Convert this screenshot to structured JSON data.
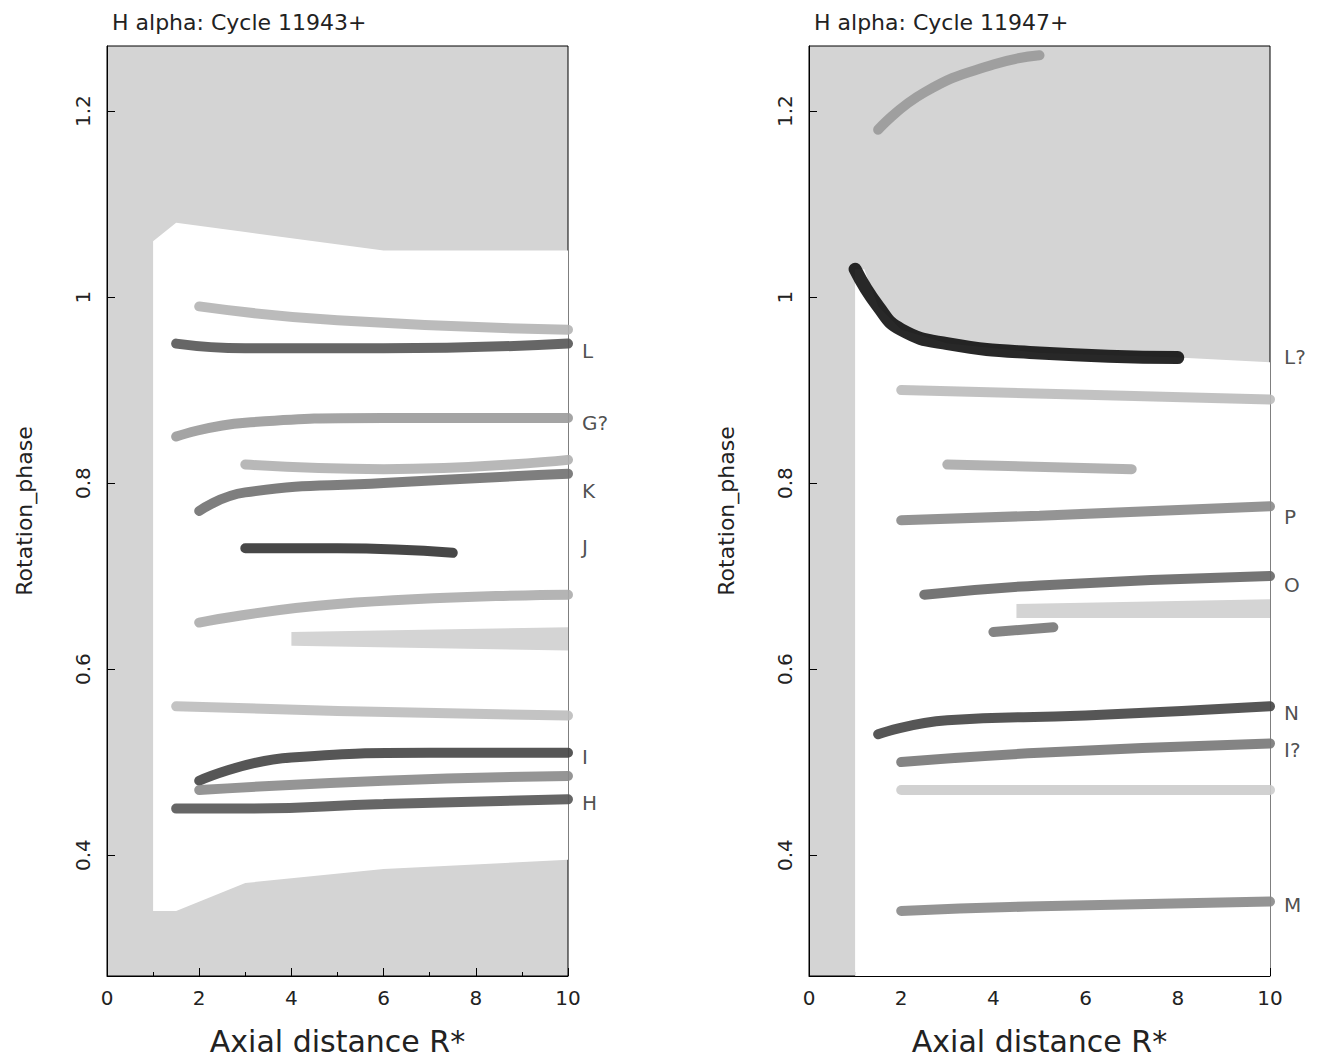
{
  "chart_data": [
    {
      "type": "line",
      "title": "H alpha: Cycle 11943+",
      "x_label": "Axial distance R*",
      "y_label": "Rotation_phase",
      "xlim": [
        0,
        10
      ],
      "xticks": [
        0,
        2,
        4,
        6,
        8,
        10
      ],
      "ylim": [
        0.27,
        1.27
      ],
      "yticks": [
        0.4,
        0.6,
        0.8,
        1.2,
        1
      ],
      "color": "#d4d4d4",
      "regions": [
        {
          "color": "#ffffff",
          "points": [
            [
              1,
              0.34
            ],
            [
              1.5,
              0.34
            ],
            [
              3,
              0.37
            ],
            [
              6,
              0.385
            ],
            [
              10,
              0.395
            ],
            [
              10,
              1.05
            ],
            [
              6,
              1.05
            ],
            [
              3,
              1.07
            ],
            [
              1.5,
              1.08
            ],
            [
              1,
              1.06
            ]
          ]
        },
        {
          "color": "#d4d4d4",
          "points": [
            [
              4,
              0.625
            ],
            [
              10,
              0.62
            ],
            [
              10,
              0.645
            ],
            [
              4,
              0.64
            ]
          ]
        }
      ],
      "series": [
        {
          "color": "#b4b4b4",
          "values": [
            [
              2,
              0.99
            ],
            [
              5,
              0.975
            ],
            [
              10,
              0.965
            ]
          ]
        },
        {
          "color": "#555555",
          "values": [
            [
              1.5,
              0.95
            ],
            [
              3,
              0.945
            ],
            [
              6,
              0.945
            ],
            [
              10,
              0.95
            ]
          ]
        },
        {
          "color": "#9a9a9a",
          "values": [
            [
              1.5,
              0.85
            ],
            [
              3,
              0.865
            ],
            [
              6,
              0.87
            ],
            [
              10,
              0.87
            ]
          ]
        },
        {
          "color": "#b0b0b0",
          "values": [
            [
              3,
              0.82
            ],
            [
              6,
              0.815
            ],
            [
              10,
              0.825
            ]
          ]
        },
        {
          "color": "#707070",
          "values": [
            [
              2,
              0.77
            ],
            [
              3,
              0.79
            ],
            [
              6,
              0.8
            ],
            [
              10,
              0.81
            ]
          ]
        },
        {
          "color": "#333333",
          "values": [
            [
              3,
              0.73
            ],
            [
              5,
              0.73
            ],
            [
              7.5,
              0.725
            ]
          ]
        },
        {
          "color": "#acacac",
          "values": [
            [
              2,
              0.65
            ],
            [
              5,
              0.67
            ],
            [
              10,
              0.68
            ]
          ]
        },
        {
          "color": "#bdbdbd",
          "values": [
            [
              1.5,
              0.56
            ],
            [
              5,
              0.555
            ],
            [
              10,
              0.55
            ]
          ]
        },
        {
          "color": "#444444",
          "values": [
            [
              2,
              0.48
            ],
            [
              4,
              0.505
            ],
            [
              7,
              0.51
            ],
            [
              10,
              0.51
            ]
          ]
        },
        {
          "color": "#8a8a8a",
          "values": [
            [
              2,
              0.47
            ],
            [
              6,
              0.48
            ],
            [
              10,
              0.485
            ]
          ]
        },
        {
          "color": "#555555",
          "values": [
            [
              1.5,
              0.45
            ],
            [
              3,
              0.45
            ],
            [
              6,
              0.455
            ],
            [
              10,
              0.46
            ]
          ]
        }
      ],
      "annotations": [
        {
          "text": "L",
          "y": 0.942
        },
        {
          "text": "G?",
          "y": 0.865
        },
        {
          "text": "K",
          "y": 0.791
        },
        {
          "text": "J",
          "y": 0.731
        },
        {
          "text": "I",
          "y": 0.506
        },
        {
          "text": "H",
          "y": 0.456
        }
      ]
    },
    {
      "type": "line",
      "title": "H alpha: Cycle 11947+",
      "x_label": "Axial distance R*",
      "y_label": "Rotation_phase",
      "xlim": [
        0,
        10
      ],
      "xticks": [
        0,
        2,
        4,
        6,
        8,
        10
      ],
      "ylim": [
        0.27,
        1.27
      ],
      "yticks": [
        0.4,
        0.6,
        0.8,
        1.2,
        1
      ],
      "color": "#d4d4d4",
      "regions": [
        {
          "color": "#ffffff",
          "points": [
            [
              1,
              0.27
            ],
            [
              10,
              0.27
            ],
            [
              10,
              0.93
            ],
            [
              8,
              0.935
            ],
            [
              5,
              0.94
            ],
            [
              3,
              0.95
            ],
            [
              2,
              0.965
            ],
            [
              1.5,
              0.99
            ],
            [
              1.2,
              1.03
            ],
            [
              1,
              1.03
            ]
          ]
        },
        {
          "color": "#d4d4d4",
          "points": [
            [
              4.5,
              0.655
            ],
            [
              10,
              0.655
            ],
            [
              10,
              0.675
            ],
            [
              4.5,
              0.67
            ]
          ]
        }
      ],
      "series": [
        {
          "color": "#999999",
          "values": [
            [
              1.5,
              1.18
            ],
            [
              2.5,
              1.22
            ],
            [
              4,
              1.25
            ],
            [
              5,
              1.26
            ]
          ]
        },
        {
          "color": "#111111",
          "values": [
            [
              1,
              1.03
            ],
            [
              1.5,
              0.99
            ],
            [
              2,
              0.965
            ],
            [
              3,
              0.95
            ],
            [
              5,
              0.94
            ],
            [
              8,
              0.935
            ]
          ]
        },
        {
          "color": "#bbbbbb",
          "values": [
            [
              2,
              0.9
            ],
            [
              6,
              0.895
            ],
            [
              10,
              0.89
            ]
          ]
        },
        {
          "color": "#aaaaaa",
          "values": [
            [
              3,
              0.82
            ],
            [
              7,
              0.815
            ]
          ]
        },
        {
          "color": "#888888",
          "values": [
            [
              2,
              0.76
            ],
            [
              5,
              0.765
            ],
            [
              10,
              0.775
            ]
          ]
        },
        {
          "color": "#666666",
          "values": [
            [
              2.5,
              0.68
            ],
            [
              5,
              0.69
            ],
            [
              10,
              0.7
            ]
          ]
        },
        {
          "color": "#777777",
          "values": [
            [
              4,
              0.64
            ],
            [
              5.3,
              0.645
            ]
          ]
        },
        {
          "color": "#444444",
          "values": [
            [
              1.5,
              0.53
            ],
            [
              3,
              0.545
            ],
            [
              6,
              0.55
            ],
            [
              10,
              0.56
            ]
          ]
        },
        {
          "color": "#777777",
          "values": [
            [
              2,
              0.5
            ],
            [
              5,
              0.51
            ],
            [
              10,
              0.52
            ]
          ]
        },
        {
          "color": "#cccccc",
          "values": [
            [
              2,
              0.47
            ],
            [
              10,
              0.47
            ]
          ]
        },
        {
          "color": "#888888",
          "values": [
            [
              2,
              0.34
            ],
            [
              5,
              0.345
            ],
            [
              10,
              0.35
            ]
          ]
        }
      ],
      "annotations": [
        {
          "text": "L?",
          "y": 0.936
        },
        {
          "text": "P",
          "y": 0.764
        },
        {
          "text": "O",
          "y": 0.69
        },
        {
          "text": "N",
          "y": 0.553
        },
        {
          "text": "I?",
          "y": 0.513
        },
        {
          "text": "M",
          "y": 0.346
        }
      ]
    }
  ]
}
